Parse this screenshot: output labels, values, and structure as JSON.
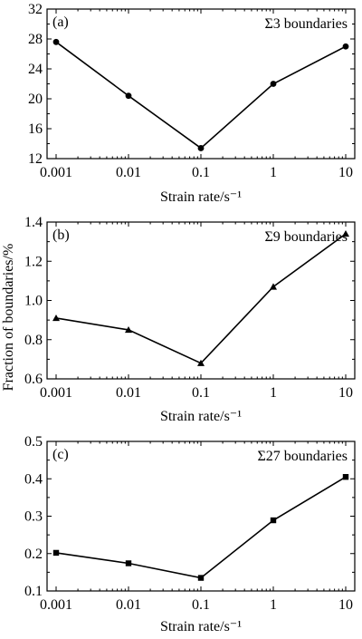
{
  "y_axis_title": "Fraction of boundaries/%",
  "chart_data": [
    {
      "type": "line",
      "panel_label": "(a)",
      "series_name": "Σ3 boundaries",
      "marker": "circle",
      "x": [
        0.001,
        0.01,
        0.1,
        1,
        10
      ],
      "x_tick_labels": [
        "0.001",
        "0.01",
        "0.1",
        "1",
        "10"
      ],
      "x_scale": "log",
      "xlabel": "Strain rate/s⁻¹",
      "ylabel": "Fraction of boundaries/%",
      "ylim": [
        12,
        32
      ],
      "yticks": [
        12,
        16,
        20,
        24,
        28,
        32
      ],
      "y_tick_labels": [
        "12",
        "16",
        "20",
        "24",
        "28",
        "32"
      ],
      "values": [
        27.6,
        20.4,
        13.4,
        22.0,
        27.0
      ]
    },
    {
      "type": "line",
      "panel_label": "(b)",
      "series_name": "Σ9 boundaries",
      "marker": "triangle",
      "x": [
        0.001,
        0.01,
        0.1,
        1,
        10
      ],
      "x_tick_labels": [
        "0.001",
        "0.01",
        "0.1",
        "1",
        "10"
      ],
      "x_scale": "log",
      "xlabel": "Strain rate/s⁻¹",
      "ylabel": "Fraction of boundaries/%",
      "ylim": [
        0.6,
        1.4
      ],
      "yticks": [
        0.6,
        0.8,
        1.0,
        1.2,
        1.4
      ],
      "y_tick_labels": [
        "0.6",
        "0.8",
        "1.0",
        "1.2",
        "1.4"
      ],
      "values": [
        0.91,
        0.85,
        0.68,
        1.07,
        1.34
      ]
    },
    {
      "type": "line",
      "panel_label": "(c)",
      "series_name": "Σ27 boundaries",
      "marker": "square",
      "x": [
        0.001,
        0.01,
        0.1,
        1,
        10
      ],
      "x_tick_labels": [
        "0.001",
        "0.01",
        "0.1",
        "1",
        "10"
      ],
      "x_scale": "log",
      "xlabel": "Strain rate/s⁻¹",
      "ylabel": "Fraction of boundaries/%",
      "ylim": [
        0.1,
        0.5
      ],
      "yticks": [
        0.1,
        0.2,
        0.3,
        0.4,
        0.5
      ],
      "y_tick_labels": [
        "0.1",
        "0.2",
        "0.3",
        "0.4",
        "0.5"
      ],
      "values": [
        0.202,
        0.174,
        0.135,
        0.289,
        0.405
      ]
    }
  ]
}
